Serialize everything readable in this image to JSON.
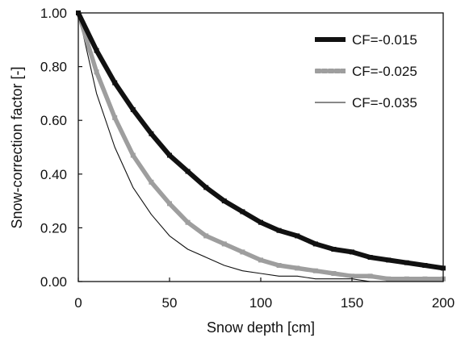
{
  "chart_data": {
    "type": "line",
    "title": "",
    "xlabel": "Snow depth [cm]",
    "ylabel": "Snow-correction factor [-]",
    "xlim": [
      0,
      200
    ],
    "ylim": [
      0,
      1
    ],
    "xticks": [
      0,
      50,
      100,
      150,
      200
    ],
    "xtick_labels": [
      "0",
      "50",
      "100",
      "150",
      "200"
    ],
    "yticks": [
      0,
      0.2,
      0.4,
      0.6,
      0.8,
      1.0
    ],
    "ytick_labels": [
      "0.00",
      "0.20",
      "0.40",
      "0.60",
      "0.80",
      "1.00"
    ],
    "grid": false,
    "legend_position": "top-right",
    "x": [
      0,
      10,
      20,
      30,
      40,
      50,
      60,
      70,
      80,
      90,
      100,
      110,
      120,
      130,
      140,
      150,
      160,
      170,
      180,
      190,
      200
    ],
    "series": [
      {
        "name": "CF=-0.015",
        "color": "#111111",
        "style": "thick dark line with square markers",
        "values": [
          1.0,
          0.86,
          0.74,
          0.64,
          0.55,
          0.47,
          0.41,
          0.35,
          0.3,
          0.26,
          0.22,
          0.19,
          0.17,
          0.14,
          0.12,
          0.11,
          0.09,
          0.08,
          0.07,
          0.06,
          0.05
        ]
      },
      {
        "name": "CF=-0.025",
        "color": "#9e9e9e",
        "style": "thick grey line with square markers",
        "values": [
          1.0,
          0.78,
          0.61,
          0.47,
          0.37,
          0.29,
          0.22,
          0.17,
          0.14,
          0.11,
          0.08,
          0.06,
          0.05,
          0.04,
          0.03,
          0.02,
          0.02,
          0.01,
          0.01,
          0.01,
          0.01
        ]
      },
      {
        "name": "CF=-0.035",
        "color": "#111111",
        "style": "thin dark line",
        "values": [
          1.0,
          0.7,
          0.5,
          0.35,
          0.25,
          0.17,
          0.12,
          0.09,
          0.06,
          0.04,
          0.03,
          0.02,
          0.02,
          0.01,
          0.01,
          0.01,
          0.0,
          0.0,
          0.0,
          0.0,
          0.0
        ]
      }
    ]
  }
}
